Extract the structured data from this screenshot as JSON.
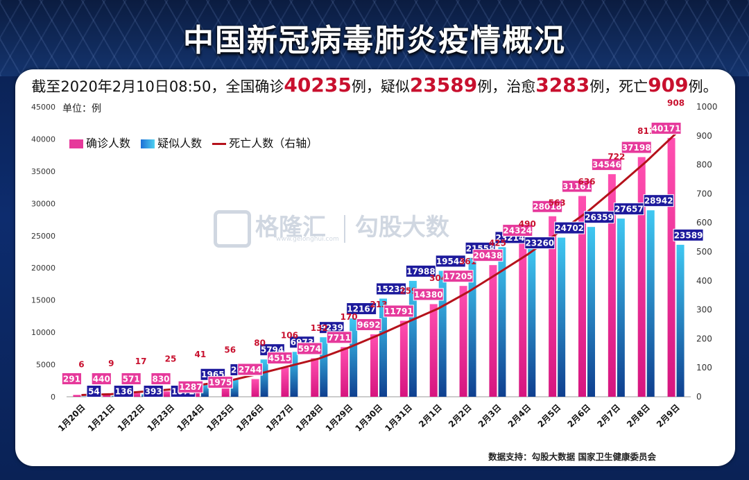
{
  "title": "中国新冠病毒肺炎疫情概况",
  "summary": {
    "prefix": "截至2020年2月10日08:50，全国确诊",
    "confirmed": "40235",
    "t1": "例，疑似",
    "suspected": "23589",
    "t2": "例，治愈",
    "cured": "3283",
    "t3": "例，死亡",
    "deaths": "909",
    "t4": "例。"
  },
  "unit_label": "单位：例",
  "source": "数据支持：勾股大数据  国家卫生健康委员会",
  "watermark": {
    "brand": "格隆汇",
    "brand2": "勾股大数",
    "url": "www.gelonghui.com"
  },
  "colors": {
    "confirmed": "#e6399b",
    "suspected": "#1c8fe0",
    "deaths": "#b5121b",
    "label_pink": "#e6399b",
    "label_navy": "#1d1a9c",
    "label_red": "#c8102e"
  },
  "chart_data": {
    "type": "bar",
    "categories": [
      "1月20日",
      "1月21日",
      "1月22日",
      "1月23日",
      "1月24日",
      "1月25日",
      "1月26日",
      "1月27日",
      "1月28日",
      "1月29日",
      "1月30日",
      "1月31日",
      "2月1日",
      "2月2日",
      "2月3日",
      "2月4日",
      "2月5日",
      "2月6日",
      "2月7日",
      "2月8日",
      "2月9日"
    ],
    "series": [
      {
        "name": "确诊人数",
        "axis": "left",
        "values": [
          291,
          440,
          571,
          830,
          1287,
          1975,
          2744,
          4515,
          5974,
          7711,
          9692,
          11791,
          14380,
          17205,
          20438,
          24324,
          28018,
          31161,
          34546,
          37198,
          40171
        ]
      },
      {
        "name": "疑似人数",
        "axis": "left",
        "values": [
          54,
          136,
          393,
          1072,
          1965,
          2684,
          5794,
          6973,
          9239,
          12167,
          15238,
          17988,
          19544,
          21558,
          23214,
          23260,
          24702,
          26359,
          27657,
          28942,
          23589
        ]
      },
      {
        "name": "死亡人数（右轴）",
        "axis": "right",
        "type": "line",
        "values": [
          6,
          9,
          17,
          25,
          41,
          56,
          80,
          106,
          132,
          170,
          213,
          259,
          304,
          361,
          425,
          490,
          563,
          636,
          722,
          811,
          908
        ]
      }
    ],
    "ylim_left": [
      0,
      45000
    ],
    "yticks_left": [
      "0",
      "5000",
      "10000",
      "15000",
      "20000",
      "25000",
      "30000",
      "35000",
      "40000",
      "45000"
    ],
    "ylim_right": [
      0,
      1000
    ],
    "yticks_right": [
      "0",
      "100",
      "200",
      "300",
      "400",
      "500",
      "600",
      "700",
      "800",
      "900",
      "1000"
    ],
    "ylabel": "单位：例",
    "legend": "top-left"
  }
}
